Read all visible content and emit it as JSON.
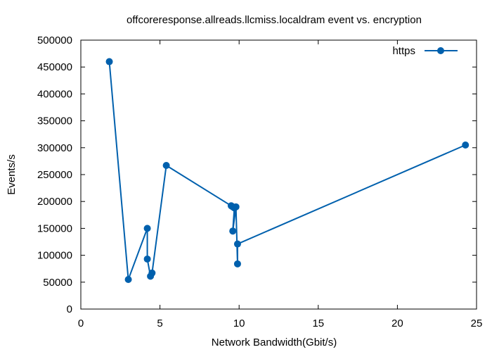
{
  "chart_data": {
    "type": "line",
    "title": "offcoreresponse.allreads.llcmiss.localdram event vs. encryption",
    "xlabel": "Network Bandwidth(Gbit/s)",
    "ylabel": "Events/s",
    "xlim": [
      0,
      25
    ],
    "ylim": [
      0,
      500000
    ],
    "xticks": [
      "0",
      "5",
      "10",
      "15",
      "20",
      "25"
    ],
    "yticks": [
      "0",
      "50000",
      "100000",
      "150000",
      "200000",
      "250000",
      "300000",
      "350000",
      "400000",
      "450000",
      "500000"
    ],
    "grid": false,
    "legend_position": "top-right",
    "series": [
      {
        "name": "https",
        "color": "#0060ad",
        "marker": "circle",
        "x": [
          1.8,
          3.0,
          4.2,
          4.2,
          4.4,
          4.5,
          5.4,
          9.5,
          9.6,
          9.7,
          9.6,
          9.8,
          9.9,
          9.9,
          24.3
        ],
        "y": [
          460000,
          55000,
          150000,
          93000,
          61000,
          67000,
          267000,
          192000,
          190000,
          188000,
          145000,
          190000,
          84000,
          121000,
          305000
        ]
      }
    ]
  }
}
